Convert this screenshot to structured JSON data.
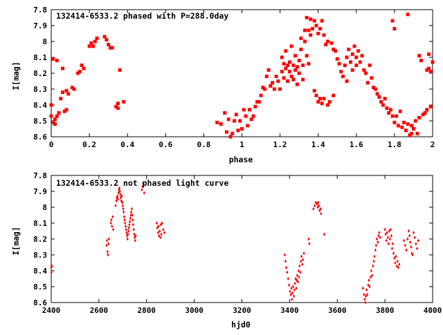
{
  "colors": {
    "points": "#ff0000",
    "axes": "#000000",
    "background": "#ffffff"
  },
  "chart_data": [
    {
      "type": "scatter",
      "title": "132414-6533.2 phased with P=288.0day",
      "xlabel": "phase",
      "ylabel": "I[mag]",
      "xlim": [
        0,
        2
      ],
      "ylim": [
        8.6,
        7.8
      ],
      "y_inverted": true,
      "grid": false,
      "x_ticks": [
        "0",
        "0.2",
        "0.4",
        "0.6",
        "0.8",
        "1",
        "1.2",
        "1.4",
        "1.6",
        "1.8",
        "2"
      ],
      "y_ticks": [
        "7.8",
        "7.9",
        "8",
        "8.1",
        "8.2",
        "8.3",
        "8.4",
        "8.5",
        "8.6"
      ],
      "marker": "filled-square",
      "points": [
        [
          0.0,
          8.4
        ],
        [
          0.0,
          8.47
        ],
        [
          0.01,
          8.11
        ],
        [
          0.01,
          8.51
        ],
        [
          0.02,
          8.52
        ],
        [
          0.02,
          8.49
        ],
        [
          0.03,
          8.12
        ],
        [
          0.03,
          8.47
        ],
        [
          0.04,
          8.45
        ],
        [
          0.05,
          8.36
        ],
        [
          0.06,
          8.17
        ],
        [
          0.06,
          8.32
        ],
        [
          0.07,
          8.44
        ],
        [
          0.08,
          8.31
        ],
        [
          0.08,
          8.43
        ],
        [
          0.09,
          8.33
        ],
        [
          0.11,
          8.29
        ],
        [
          0.12,
          8.3
        ],
        [
          0.14,
          8.2
        ],
        [
          0.15,
          8.19
        ],
        [
          0.16,
          8.15
        ],
        [
          0.17,
          8.17
        ],
        [
          0.2,
          8.03
        ],
        [
          0.21,
          8.01
        ],
        [
          0.22,
          8.03
        ],
        [
          0.23,
          8.0
        ],
        [
          0.24,
          7.98
        ],
        [
          0.28,
          7.97
        ],
        [
          0.29,
          7.99
        ],
        [
          0.3,
          8.02
        ],
        [
          0.31,
          8.04
        ],
        [
          0.32,
          8.04
        ],
        [
          0.34,
          8.41
        ],
        [
          0.35,
          8.42
        ],
        [
          0.35,
          8.39
        ],
        [
          0.36,
          8.18
        ],
        [
          0.38,
          8.38
        ],
        [
          0.87,
          8.51
        ],
        [
          0.89,
          8.52
        ],
        [
          0.91,
          8.45
        ],
        [
          0.92,
          8.57
        ],
        [
          0.93,
          8.49
        ],
        [
          0.94,
          8.6
        ],
        [
          0.95,
          8.58
        ],
        [
          0.96,
          8.5
        ],
        [
          0.97,
          8.46
        ],
        [
          0.98,
          8.56
        ],
        [
          0.99,
          8.5
        ],
        [
          1.0,
          8.55
        ],
        [
          1.01,
          8.43
        ],
        [
          1.02,
          8.47
        ],
        [
          1.03,
          8.53
        ],
        [
          1.04,
          8.43
        ],
        [
          1.05,
          8.49
        ],
        [
          1.06,
          8.47
        ],
        [
          1.07,
          8.41
        ],
        [
          1.08,
          8.38
        ],
        [
          1.09,
          8.38
        ],
        [
          1.1,
          8.34
        ],
        [
          1.11,
          8.29
        ],
        [
          1.12,
          8.3
        ],
        [
          1.13,
          8.22
        ],
        [
          1.14,
          8.18
        ],
        [
          1.15,
          8.28
        ],
        [
          1.16,
          8.26
        ],
        [
          1.17,
          8.3
        ],
        [
          1.18,
          8.22
        ],
        [
          1.19,
          8.25
        ],
        [
          1.2,
          8.3
        ],
        [
          1.21,
          8.19
        ],
        [
          1.21,
          8.1
        ],
        [
          1.22,
          8.14
        ],
        [
          1.22,
          8.23
        ],
        [
          1.23,
          8.17
        ],
        [
          1.23,
          8.06
        ],
        [
          1.24,
          8.15
        ],
        [
          1.24,
          8.25
        ],
        [
          1.25,
          8.19
        ],
        [
          1.25,
          8.13
        ],
        [
          1.26,
          8.03
        ],
        [
          1.26,
          8.22
        ],
        [
          1.27,
          8.15
        ],
        [
          1.27,
          8.24
        ],
        [
          1.28,
          8.09
        ],
        [
          1.28,
          8.18
        ],
        [
          1.29,
          8.16
        ],
        [
          1.29,
          8.27
        ],
        [
          1.3,
          8.12
        ],
        [
          1.3,
          8.2
        ],
        [
          1.31,
          7.98
        ],
        [
          1.31,
          8.05
        ],
        [
          1.32,
          8.15
        ],
        [
          1.32,
          8.24
        ],
        [
          1.33,
          7.93
        ],
        [
          1.33,
          8.0
        ],
        [
          1.34,
          7.85
        ],
        [
          1.34,
          8.09
        ],
        [
          1.35,
          7.93
        ],
        [
          1.35,
          8.14
        ],
        [
          1.36,
          7.86
        ],
        [
          1.36,
          7.96
        ],
        [
          1.37,
          7.92
        ],
        [
          1.38,
          7.87
        ],
        [
          1.38,
          8.31
        ],
        [
          1.39,
          7.9
        ],
        [
          1.39,
          8.34
        ],
        [
          1.4,
          7.95
        ],
        [
          1.4,
          8.38
        ],
        [
          1.41,
          7.92
        ],
        [
          1.41,
          8.36
        ],
        [
          1.42,
          7.87
        ],
        [
          1.42,
          8.39
        ],
        [
          1.43,
          7.96
        ],
        [
          1.43,
          8.36
        ],
        [
          1.44,
          8.02
        ],
        [
          1.45,
          8.4
        ],
        [
          1.45,
          8.0
        ],
        [
          1.46,
          8.38
        ],
        [
          1.47,
          8.01
        ],
        [
          1.48,
          8.05
        ],
        [
          1.48,
          8.34
        ],
        [
          1.49,
          8.06
        ],
        [
          1.5,
          8.11
        ],
        [
          1.51,
          8.14
        ],
        [
          1.52,
          8.19
        ],
        [
          1.53,
          8.22
        ],
        [
          1.54,
          8.15
        ],
        [
          1.55,
          8.1
        ],
        [
          1.55,
          8.25
        ],
        [
          1.56,
          8.05
        ],
        [
          1.57,
          8.13
        ],
        [
          1.58,
          8.08
        ],
        [
          1.58,
          8.18
        ],
        [
          1.59,
          8.03
        ],
        [
          1.6,
          8.1
        ],
        [
          1.6,
          8.15
        ],
        [
          1.61,
          8.06
        ],
        [
          1.62,
          8.13
        ],
        [
          1.63,
          8.09
        ],
        [
          1.64,
          8.18
        ],
        [
          1.65,
          8.2
        ],
        [
          1.66,
          8.26
        ],
        [
          1.67,
          8.15
        ],
        [
          1.68,
          8.23
        ],
        [
          1.69,
          8.29
        ],
        [
          1.7,
          8.3
        ],
        [
          1.71,
          8.33
        ],
        [
          1.72,
          8.35
        ],
        [
          1.73,
          8.38
        ],
        [
          1.74,
          8.4
        ],
        [
          1.75,
          8.36
        ],
        [
          1.76,
          8.42
        ],
        [
          1.77,
          8.45
        ],
        [
          1.78,
          8.43
        ],
        [
          1.79,
          7.87
        ],
        [
          1.79,
          8.47
        ],
        [
          1.8,
          7.92
        ],
        [
          1.8,
          8.51
        ],
        [
          1.81,
          8.47
        ],
        [
          1.82,
          8.53
        ],
        [
          1.83,
          8.44
        ],
        [
          1.84,
          8.54
        ],
        [
          1.85,
          8.51
        ],
        [
          1.86,
          8.56
        ],
        [
          1.87,
          7.83
        ],
        [
          1.87,
          8.52
        ],
        [
          1.88,
          8.59
        ],
        [
          1.89,
          8.53
        ],
        [
          1.89,
          8.58
        ],
        [
          1.9,
          8.55
        ],
        [
          1.91,
          8.5
        ],
        [
          1.92,
          8.58
        ],
        [
          1.93,
          8.09
        ],
        [
          1.93,
          8.48
        ],
        [
          1.94,
          8.12
        ],
        [
          1.95,
          8.46
        ],
        [
          1.96,
          8.45
        ],
        [
          1.97,
          8.18
        ],
        [
          1.97,
          8.43
        ],
        [
          1.98,
          8.08
        ],
        [
          1.98,
          8.17
        ],
        [
          1.99,
          8.41
        ],
        [
          1.99,
          8.19
        ],
        [
          2.0,
          8.13
        ]
      ]
    },
    {
      "type": "scatter",
      "title": "132414-6533.2 not phased light curve",
      "xlabel": "hjd0",
      "ylabel": "I[mag]",
      "xlim": [
        2400,
        4000
      ],
      "ylim": [
        8.6,
        7.8
      ],
      "y_inverted": true,
      "grid": false,
      "x_ticks": [
        "2400",
        "2600",
        "2800",
        "3000",
        "3200",
        "3400",
        "3600",
        "3800",
        "4000"
      ],
      "y_ticks": [
        "7.8",
        "7.9",
        "8",
        "8.1",
        "8.2",
        "8.3",
        "8.4",
        "8.5",
        "8.6"
      ],
      "marker": "small-diamond",
      "points": [
        [
          2400,
          8.38
        ],
        [
          2401,
          8.41
        ],
        [
          2403,
          8.37
        ],
        [
          2632,
          8.24
        ],
        [
          2634,
          8.21
        ],
        [
          2636,
          8.28
        ],
        [
          2638,
          8.3
        ],
        [
          2640,
          8.23
        ],
        [
          2642,
          8.2
        ],
        [
          2650,
          8.1
        ],
        [
          2652,
          8.08
        ],
        [
          2655,
          8.12
        ],
        [
          2658,
          8.06
        ],
        [
          2660,
          8.14
        ],
        [
          2670,
          7.99
        ],
        [
          2673,
          7.96
        ],
        [
          2675,
          7.94
        ],
        [
          2678,
          7.93
        ],
        [
          2680,
          7.95
        ],
        [
          2682,
          7.91
        ],
        [
          2684,
          7.89
        ],
        [
          2686,
          7.88
        ],
        [
          2688,
          7.9
        ],
        [
          2690,
          7.92
        ],
        [
          2692,
          7.94
        ],
        [
          2694,
          7.96
        ],
        [
          2696,
          7.93
        ],
        [
          2698,
          7.97
        ],
        [
          2700,
          7.99
        ],
        [
          2702,
          8.01
        ],
        [
          2704,
          8.03
        ],
        [
          2706,
          8.06
        ],
        [
          2708,
          8.08
        ],
        [
          2710,
          8.1
        ],
        [
          2712,
          8.12
        ],
        [
          2714,
          8.14
        ],
        [
          2716,
          8.16
        ],
        [
          2718,
          8.18
        ],
        [
          2720,
          8.2
        ],
        [
          2722,
          8.17
        ],
        [
          2724,
          8.15
        ],
        [
          2726,
          8.13
        ],
        [
          2728,
          8.11
        ],
        [
          2730,
          8.09
        ],
        [
          2732,
          8.07
        ],
        [
          2734,
          8.05
        ],
        [
          2736,
          8.03
        ],
        [
          2738,
          8.01
        ],
        [
          2740,
          8.05
        ],
        [
          2742,
          8.08
        ],
        [
          2744,
          8.11
        ],
        [
          2746,
          8.14
        ],
        [
          2748,
          8.17
        ],
        [
          2750,
          8.19
        ],
        [
          2752,
          8.21
        ],
        [
          2754,
          8.18
        ],
        [
          2780,
          7.89
        ],
        [
          2783,
          7.87
        ],
        [
          2786,
          7.85
        ],
        [
          2790,
          7.91
        ],
        [
          2842,
          8.1
        ],
        [
          2845,
          8.13
        ],
        [
          2848,
          8.16
        ],
        [
          2850,
          8.12
        ],
        [
          2852,
          8.18
        ],
        [
          2855,
          8.15
        ],
        [
          2858,
          8.19
        ],
        [
          2860,
          8.11
        ],
        [
          2862,
          8.17
        ],
        [
          2865,
          8.1
        ],
        [
          2870,
          8.14
        ],
        [
          2875,
          8.16
        ],
        [
          3380,
          8.3
        ],
        [
          3383,
          8.34
        ],
        [
          3386,
          8.38
        ],
        [
          3390,
          8.41
        ],
        [
          3394,
          8.45
        ],
        [
          3398,
          8.49
        ],
        [
          3402,
          8.53
        ],
        [
          3405,
          8.55
        ],
        [
          3408,
          8.51
        ],
        [
          3410,
          8.58
        ],
        [
          3412,
          8.54
        ],
        [
          3415,
          8.5
        ],
        [
          3418,
          8.56
        ],
        [
          3420,
          8.52
        ],
        [
          3422,
          8.48
        ],
        [
          3425,
          8.45
        ],
        [
          3428,
          8.51
        ],
        [
          3430,
          8.46
        ],
        [
          3432,
          8.43
        ],
        [
          3435,
          8.47
        ],
        [
          3438,
          8.4
        ],
        [
          3440,
          8.44
        ],
        [
          3442,
          8.37
        ],
        [
          3445,
          8.41
        ],
        [
          3448,
          8.34
        ],
        [
          3450,
          8.31
        ],
        [
          3453,
          8.36
        ],
        [
          3456,
          8.33
        ],
        [
          3460,
          8.29
        ],
        [
          3480,
          8.2
        ],
        [
          3483,
          8.23
        ],
        [
          3500,
          8.01
        ],
        [
          3505,
          7.99
        ],
        [
          3510,
          7.97
        ],
        [
          3515,
          7.98
        ],
        [
          3518,
          8.0
        ],
        [
          3520,
          7.97
        ],
        [
          3523,
          7.99
        ],
        [
          3526,
          8.02
        ],
        [
          3530,
          8.01
        ],
        [
          3532,
          8.04
        ],
        [
          3545,
          8.17
        ],
        [
          3708,
          8.51
        ],
        [
          3712,
          8.55
        ],
        [
          3715,
          8.58
        ],
        [
          3718,
          8.6
        ],
        [
          3720,
          8.56
        ],
        [
          3723,
          8.52
        ],
        [
          3726,
          8.55
        ],
        [
          3730,
          8.49
        ],
        [
          3733,
          8.46
        ],
        [
          3736,
          8.5
        ],
        [
          3740,
          8.44
        ],
        [
          3743,
          8.4
        ],
        [
          3746,
          8.43
        ],
        [
          3750,
          8.37
        ],
        [
          3753,
          8.34
        ],
        [
          3756,
          8.31
        ],
        [
          3760,
          8.27
        ],
        [
          3763,
          8.24
        ],
        [
          3766,
          8.2
        ],
        [
          3770,
          8.22
        ],
        [
          3773,
          8.18
        ],
        [
          3776,
          8.16
        ],
        [
          3780,
          8.19
        ],
        [
          3800,
          8.14
        ],
        [
          3803,
          8.17
        ],
        [
          3806,
          8.21
        ],
        [
          3809,
          8.16
        ],
        [
          3812,
          8.19
        ],
        [
          3815,
          8.23
        ],
        [
          3818,
          8.15
        ],
        [
          3821,
          8.2
        ],
        [
          3824,
          8.14
        ],
        [
          3827,
          8.18
        ],
        [
          3830,
          8.26
        ],
        [
          3833,
          8.23
        ],
        [
          3836,
          8.29
        ],
        [
          3840,
          8.32
        ],
        [
          3843,
          8.35
        ],
        [
          3846,
          8.31
        ],
        [
          3850,
          8.37
        ],
        [
          3853,
          8.34
        ],
        [
          3856,
          8.38
        ],
        [
          3860,
          8.36
        ],
        [
          3880,
          8.21
        ],
        [
          3885,
          8.24
        ],
        [
          3890,
          8.27
        ],
        [
          3895,
          8.2
        ],
        [
          3900,
          8.15
        ],
        [
          3903,
          8.18
        ],
        [
          3906,
          8.22
        ],
        [
          3910,
          8.25
        ],
        [
          3913,
          8.29
        ],
        [
          3916,
          8.3
        ],
        [
          3920,
          8.16
        ],
        [
          3925,
          8.19
        ],
        [
          3930,
          8.23
        ],
        [
          3935,
          8.26
        ],
        [
          3940,
          8.21
        ]
      ]
    }
  ]
}
